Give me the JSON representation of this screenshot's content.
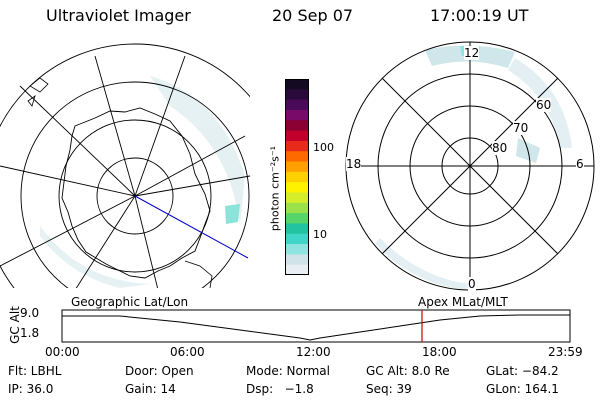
{
  "header": {
    "title": "Ultraviolet Imager",
    "date": "20 Sep 07",
    "time": "17:00:19 UT"
  },
  "colorbar": {
    "unit_label": "photon cm⁻²s⁻¹",
    "ticks": [
      "100",
      "10"
    ],
    "colors": [
      "#e9eef2",
      "#cfe3e8",
      "#8fe3e1",
      "#3fd6c9",
      "#22c3a0",
      "#57d46a",
      "#9be24a",
      "#d6ee2a",
      "#fff200",
      "#ffd000",
      "#ffa000",
      "#ff6a00",
      "#e82a1a",
      "#c0002a",
      "#8a0033",
      "#7a0a6a",
      "#4a0a5a",
      "#2a0a3a",
      "#140a22"
    ]
  },
  "maps": {
    "left_label": "Geographic Lat/Lon",
    "right_label": "Apex MLat/MLT",
    "mlt_labels": [
      "12",
      "18",
      "6",
      "0"
    ],
    "mlat_labels": [
      "60",
      "70",
      "80"
    ]
  },
  "timeline": {
    "axis_label": "GC Alt",
    "yticks": [
      "9.0",
      "1.8"
    ],
    "xticks": [
      "00:00",
      "06:00",
      "12:00",
      "18:00",
      "23:59"
    ],
    "marker_time": "17:00",
    "marker_color": "#cc0000"
  },
  "info": {
    "row1": [
      "Flt: LBHL",
      "Door: Open",
      "Mode: Normal",
      "GC Alt: 8.0 Re",
      "GLat: −84.2"
    ],
    "row2": [
      "IP: 36.0",
      "Gain: 14",
      "Dsp:   −1.8",
      "Seq: 39",
      "GLon: 164.1"
    ]
  }
}
